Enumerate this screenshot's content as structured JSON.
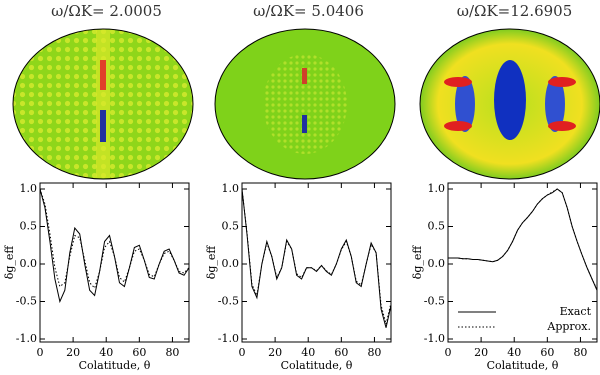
{
  "chart_data": [
    {
      "type": "line",
      "title": "ω/ΩK= 2.0005",
      "xlabel": "Colatitude, θ",
      "ylabel": "δg_eff",
      "x": [
        0,
        3,
        6,
        9,
        12,
        15,
        18,
        21,
        24,
        27,
        30,
        33,
        36,
        39,
        42,
        45,
        48,
        51,
        54,
        57,
        60,
        63,
        66,
        69,
        72,
        75,
        78,
        81,
        84,
        87,
        90
      ],
      "xlim": [
        0,
        90
      ],
      "xticks": [
        0,
        20,
        40,
        60,
        80
      ],
      "ylim": [
        -1.04,
        1.08
      ],
      "yticks": [
        {
          "value": -1,
          "label": "-1.0"
        },
        {
          "value": -0.5,
          "label": "-0.5"
        },
        {
          "value": 0,
          "label": "0.0"
        },
        {
          "value": 0.5,
          "label": "0.5"
        },
        {
          "value": 1,
          "label": "1.0"
        }
      ],
      "series": [
        {
          "color": "#000000",
          "style": "solid",
          "values": [
            1.0,
            0.75,
            0.3,
            -0.2,
            -0.5,
            -0.35,
            0.15,
            0.48,
            0.4,
            0.0,
            -0.35,
            -0.42,
            -0.1,
            0.3,
            0.38,
            0.1,
            -0.25,
            -0.3,
            -0.05,
            0.22,
            0.25,
            0.05,
            -0.18,
            -0.2,
            0.0,
            0.17,
            0.2,
            0.05,
            -0.12,
            -0.15,
            -0.05
          ]
        },
        {
          "color": "#000000",
          "style": "dotted",
          "values": [
            1.0,
            0.8,
            0.4,
            -0.05,
            -0.3,
            -0.25,
            0.1,
            0.38,
            0.35,
            0.05,
            -0.25,
            -0.32,
            -0.1,
            0.22,
            0.3,
            0.1,
            -0.18,
            -0.24,
            -0.05,
            0.17,
            0.2,
            0.05,
            -0.14,
            -0.17,
            0.0,
            0.14,
            0.17,
            0.05,
            -0.1,
            -0.12,
            -0.05
          ]
        }
      ]
    },
    {
      "type": "line",
      "title": "ω/ΩK= 5.0406",
      "xlabel": "Colatitude, θ",
      "ylabel": "δg_eff",
      "x": [
        0,
        3,
        6,
        9,
        12,
        15,
        18,
        21,
        24,
        27,
        30,
        33,
        36,
        39,
        42,
        45,
        48,
        51,
        54,
        57,
        60,
        63,
        66,
        69,
        72,
        75,
        78,
        81,
        84,
        87,
        90
      ],
      "xlim": [
        0,
        90
      ],
      "xticks": [
        0,
        20,
        40,
        60,
        80
      ],
      "ylim": [
        -1.04,
        1.08
      ],
      "yticks": [
        {
          "value": -1,
          "label": "-1.0"
        },
        {
          "value": -0.5,
          "label": "-0.5"
        },
        {
          "value": 0,
          "label": "0.0"
        },
        {
          "value": 0.5,
          "label": "0.5"
        },
        {
          "value": 1,
          "label": "1.0"
        }
      ],
      "series": [
        {
          "color": "#000000",
          "style": "solid",
          "values": [
            1.0,
            0.4,
            -0.3,
            -0.45,
            0.0,
            0.3,
            0.1,
            -0.2,
            -0.05,
            0.32,
            0.2,
            -0.15,
            -0.2,
            -0.05,
            -0.05,
            -0.1,
            -0.02,
            -0.1,
            -0.15,
            0.0,
            0.2,
            0.32,
            0.1,
            -0.25,
            -0.3,
            0.0,
            0.28,
            0.15,
            -0.6,
            -0.85,
            -0.55
          ]
        },
        {
          "color": "#000000",
          "style": "dotted",
          "values": [
            1.0,
            0.42,
            -0.27,
            -0.42,
            0.0,
            0.28,
            0.1,
            -0.18,
            -0.05,
            0.3,
            0.2,
            -0.13,
            -0.18,
            -0.05,
            -0.05,
            -0.09,
            -0.02,
            -0.09,
            -0.14,
            0.0,
            0.19,
            0.3,
            0.1,
            -0.23,
            -0.28,
            0.0,
            0.26,
            0.15,
            -0.55,
            -0.8,
            -0.52
          ]
        }
      ]
    },
    {
      "type": "line",
      "title": "ω/ΩK=12.6905",
      "xlabel": "Colatitude, θ",
      "ylabel": "δg_eff",
      "x": [
        0,
        3,
        6,
        9,
        12,
        15,
        18,
        21,
        24,
        27,
        30,
        33,
        36,
        39,
        42,
        45,
        48,
        51,
        54,
        57,
        60,
        63,
        66,
        69,
        72,
        75,
        78,
        81,
        84,
        87,
        90
      ],
      "xlim": [
        0,
        90
      ],
      "xticks": [
        0,
        20,
        40,
        60,
        80
      ],
      "ylim": [
        -1.04,
        1.08
      ],
      "yticks": [
        {
          "value": -1,
          "label": "-1.0"
        },
        {
          "value": -0.5,
          "label": "-0.5"
        },
        {
          "value": 0,
          "label": "0.0"
        },
        {
          "value": 0.5,
          "label": "0.5"
        },
        {
          "value": 1,
          "label": "1.0"
        }
      ],
      "legend": "lower left",
      "series": [
        {
          "name": "Exact",
          "color": "#000000",
          "style": "solid",
          "values": [
            0.08,
            0.08,
            0.08,
            0.07,
            0.07,
            0.06,
            0.06,
            0.05,
            0.04,
            0.03,
            0.05,
            0.1,
            0.18,
            0.3,
            0.45,
            0.55,
            0.62,
            0.7,
            0.8,
            0.87,
            0.92,
            0.95,
            1.0,
            0.95,
            0.75,
            0.5,
            0.3,
            0.12,
            -0.05,
            -0.2,
            -0.35
          ]
        },
        {
          "name": "Approx.",
          "color": "#000000",
          "style": "dotted",
          "values": [
            0.08,
            0.08,
            0.08,
            0.07,
            0.07,
            0.06,
            0.06,
            0.05,
            0.04,
            0.03,
            0.05,
            0.1,
            0.18,
            0.3,
            0.45,
            0.55,
            0.62,
            0.7,
            0.8,
            0.87,
            0.92,
            0.96,
            1.0,
            0.95,
            0.75,
            0.5,
            0.3,
            0.12,
            -0.05,
            -0.2,
            -0.34
          ]
        }
      ]
    }
  ]
}
